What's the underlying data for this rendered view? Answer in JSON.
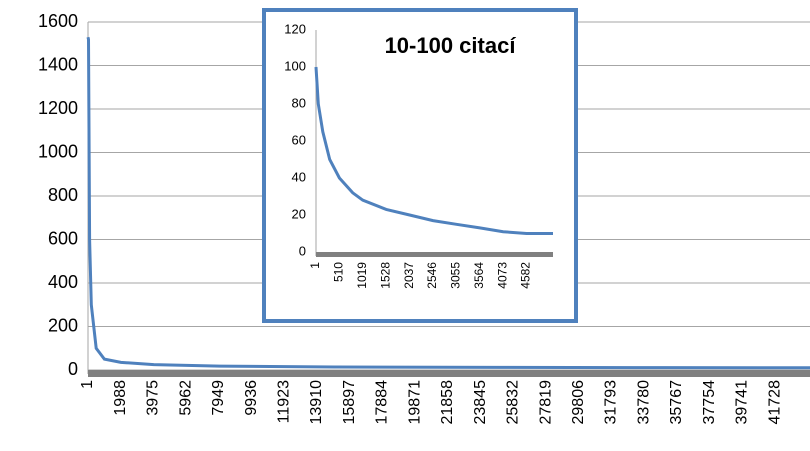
{
  "chart_data": [
    {
      "type": "line",
      "color": "#4f81bd",
      "grid": true,
      "x": [
        1,
        30,
        100,
        200,
        500,
        1000,
        2000,
        4000,
        8000,
        15000,
        25000,
        35000,
        43850
      ],
      "values": [
        1530,
        1520,
        600,
        300,
        100,
        50,
        35,
        25,
        18,
        14,
        12,
        11,
        10
      ],
      "xlim": [
        1,
        43850
      ],
      "xticks": [
        1,
        1988,
        3975,
        5962,
        7949,
        9936,
        11923,
        13910,
        15897,
        17884,
        19871,
        21858,
        23845,
        25832,
        27819,
        29806,
        31793,
        33780,
        35767,
        37754,
        39741,
        41728
      ],
      "ylim": [
        0,
        1600
      ],
      "yticks": [
        0,
        200,
        400,
        600,
        800,
        1000,
        1200,
        1400,
        1600
      ]
    },
    {
      "type": "line",
      "color": "#4f81bd",
      "title": "10-100 citací",
      "grid": false,
      "x": [
        1,
        50,
        150,
        300,
        510,
        800,
        1019,
        1528,
        2037,
        2546,
        3055,
        3564,
        4073,
        4582,
        5157
      ],
      "values": [
        100,
        80,
        65,
        50,
        40,
        32,
        28,
        23,
        20,
        17,
        15,
        13,
        11,
        10,
        10
      ],
      "xlim": [
        1,
        5157
      ],
      "xticks": [
        1,
        510,
        1019,
        1528,
        2037,
        2546,
        3055,
        3564,
        4073,
        4582
      ],
      "ylim": [
        0,
        120
      ],
      "yticks": [
        0,
        20,
        40,
        60,
        80,
        100,
        120
      ]
    }
  ]
}
